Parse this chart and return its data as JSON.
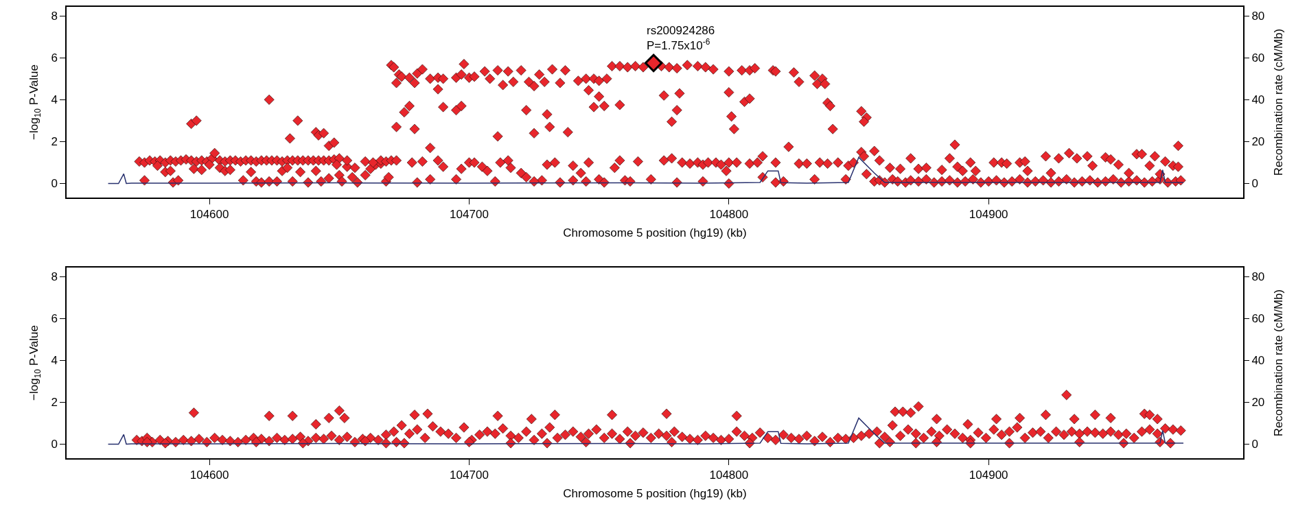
{
  "chart_data": [
    {
      "type": "scatter",
      "xlabel": "Chromosome 5 position (hg19) (kb)",
      "ylabel": "−log$_{10}$ P-Value",
      "y2label": "Recombination rate (cM/Mb)",
      "xlim": [
        104545,
        104998
      ],
      "xticks": [
        104600,
        104700,
        104800,
        104900
      ],
      "ylim": [
        -0.67,
        8.43
      ],
      "yticks": [
        0,
        2,
        4,
        6,
        8
      ],
      "y2lim": [
        -6.7,
        84.3
      ],
      "y2ticks": [
        0,
        20,
        40,
        60,
        80
      ],
      "marker": "diamond",
      "grid": false,
      "annotations": [
        {
          "text": "rs200924286\nP=1.75x10$^{-6}$",
          "x": 104771,
          "y": 5.75
        }
      ],
      "series": [
        {
          "type": "line",
          "marker": "none",
          "axis": "y2",
          "color": "#27306e",
          "x": [
            104561,
            104565,
            104567,
            104568,
            104570,
            104600,
            104650,
            104700,
            104760,
            104790,
            104812,
            104815,
            104819,
            104820,
            104830,
            104846,
            104850,
            104856,
            104860,
            104900,
            104950,
            104966,
            104967,
            104968,
            104975
          ],
          "values": [
            0,
            0,
            4.6,
            0,
            0.2,
            0.2,
            0.3,
            0.2,
            0.3,
            0.2,
            0.5,
            6,
            6,
            0.4,
            0.2,
            0.5,
            12.5,
            5,
            0.5,
            0.5,
            0.5,
            0.5,
            6.5,
            0.5,
            0.5
          ]
        },
        {
          "type": "scatter",
          "color": "#e8262c",
          "x": [
            104573,
            104575,
            104577,
            104579,
            104581,
            104583,
            104585,
            104587,
            104589,
            104591,
            104593,
            104595,
            104597,
            104599,
            104601,
            104602,
            104604,
            104606,
            104608,
            104610,
            104612,
            104614,
            104616,
            104618,
            104620,
            104622,
            104624,
            104626,
            104628,
            104630,
            104632,
            104634,
            104636,
            104638,
            104640,
            104642,
            104644,
            104646,
            104648,
            104650,
            104575,
            104580,
            104583,
            104585,
            104586,
            104588,
            104594,
            104597,
            104600,
            104604,
            104606,
            104608,
            104613,
            104616,
            104618,
            104620,
            104623,
            104626,
            104628,
            104630,
            104632,
            104635,
            104638,
            104641,
            104643,
            104646,
            104649,
            104650,
            104651,
            104653,
            104655,
            104657,
            104660,
            104662,
            104664,
            104666,
            104668,
            104669,
            104593,
            104595,
            104623,
            104631,
            104634,
            104641,
            104642,
            104644,
            104646,
            104648,
            104653,
            104656,
            104660,
            104663,
            104666,
            104668,
            104670,
            104672,
            104678,
            104682,
            104685,
            104688,
            104690,
            104697,
            104700,
            104702,
            104705,
            104707,
            104712,
            104715,
            104716,
            104720,
            104722,
            104728,
            104730,
            104733,
            104735,
            104740,
            104743,
            104746,
            104750,
            104752,
            104756,
            104758,
            104760,
            104762,
            104765,
            104770,
            104775,
            104778,
            104782,
            104785,
            104788,
            104790,
            104792,
            104795,
            104797,
            104799,
            104800,
            104803,
            104808,
            104811,
            104813,
            104818,
            104823,
            104827,
            104830,
            104835,
            104838,
            104842,
            104846,
            104848,
            104851,
            104852,
            104853,
            104680,
            104685,
            104695,
            104710,
            104725,
            104740,
            104745,
            104780,
            104790,
            104800,
            104813,
            104818,
            104821,
            104833,
            104845,
            104670,
            104671,
            104672,
            104673,
            104674,
            104677,
            104679,
            104680,
            104682,
            104685,
            104688,
            104690,
            104695,
            104697,
            104698,
            104700,
            104702,
            104706,
            104708,
            104711,
            104713,
            104715,
            104717,
            104720,
            104723,
            104725,
            104727,
            104729,
            104732,
            104735,
            104737,
            104742,
            104745,
            104746,
            104748,
            104750,
            104753,
            104755,
            104758,
            104761,
            104764,
            104767,
            104774,
            104777,
            104780,
            104784,
            104788,
            104791,
            104794,
            104800,
            104805,
            104808,
            104810,
            104817,
            104818,
            104825,
            104827,
            104833,
            104834,
            104836,
            104837,
            104672,
            104675,
            104677,
            104679,
            104688,
            104690,
            104695,
            104697,
            104711,
            104722,
            104725,
            104730,
            104731,
            104738,
            104748,
            104750,
            104752,
            104758,
            104778,
            104780,
            104781,
            104775,
            104800,
            104801,
            104802,
            104806,
            104808,
            104838,
            104839,
            104840,
            104851,
            104853,
            104852,
            104856,
            104858,
            104860,
            104863,
            104865,
            104868,
            104870,
            104873,
            104876,
            104879,
            104882,
            104885,
            104888,
            104891,
            104894,
            104897,
            104900,
            104903,
            104906,
            104909,
            104912,
            104915,
            104918,
            104921,
            104924,
            104927,
            104930,
            104933,
            104936,
            104939,
            104942,
            104945,
            104948,
            104951,
            104954,
            104957,
            104960,
            104963,
            104966,
            104969,
            104972,
            104974,
            104856,
            104858,
            104862,
            104866,
            104870,
            104873,
            104876,
            104882,
            104885,
            104887,
            104888,
            104890,
            104893,
            104895,
            104902,
            104905,
            104907,
            104912,
            104914,
            104915,
            104922,
            104924,
            104927,
            104931,
            104934,
            104938,
            104940,
            104945,
            104947,
            104950,
            104954,
            104957,
            104959,
            104962,
            104964,
            104966,
            104968,
            104971,
            104973,
            104973
          ],
          "values": [
            1.05,
            1.0,
            1.1,
            1.05,
            1.1,
            1.0,
            1.1,
            1.05,
            1.1,
            1.15,
            1.1,
            1.05,
            1.1,
            1.05,
            1.2,
            1.45,
            1.1,
            1.05,
            1.1,
            1.1,
            1.05,
            1.1,
            1.1,
            1.05,
            1.1,
            1.1,
            1.1,
            1.1,
            1.05,
            1.1,
            1.1,
            1.1,
            1.1,
            1.1,
            1.1,
            1.1,
            1.1,
            1.1,
            1.15,
            1.2,
            0.15,
            0.85,
            0.55,
            0.6,
            0.05,
            0.15,
            0.7,
            0.65,
            0.9,
            0.75,
            0.6,
            0.65,
            0.15,
            0.55,
            0.1,
            0.05,
            0.1,
            0.1,
            0.6,
            0.75,
            0.1,
            0.55,
            0.05,
            0.6,
            0.1,
            0.25,
            0.9,
            0.4,
            0.1,
            0.8,
            0.3,
            0.05,
            0.4,
            0.7,
            0.9,
            0.95,
            0.1,
            0.3,
            2.85,
            3.0,
            4.0,
            2.15,
            3.0,
            2.45,
            2.3,
            2.4,
            1.8,
            1.95,
            1.1,
            0.75,
            1.05,
            1.0,
            1.1,
            1.05,
            1.1,
            1.1,
            1.0,
            1.05,
            1.7,
            1.1,
            0.8,
            0.7,
            1.0,
            1.0,
            0.8,
            0.6,
            1.0,
            1.1,
            0.75,
            0.5,
            0.3,
            0.15,
            0.9,
            1.0,
            0.05,
            0.85,
            0.5,
            1.0,
            0.2,
            0.05,
            0.75,
            1.1,
            0.15,
            0.1,
            1.05,
            0.2,
            1.1,
            1.2,
            1.0,
            0.95,
            1.0,
            0.9,
            1.0,
            1.0,
            0.9,
            0.6,
            1.0,
            1.0,
            0.95,
            1.0,
            1.3,
            1.0,
            1.75,
            0.95,
            0.95,
            1.0,
            0.95,
            1.0,
            0.85,
            1.0,
            1.5,
            1.3,
            0.45,
            0.05,
            0.2,
            0.2,
            0.1,
            0.1,
            0.15,
            0.1,
            0.05,
            0.1,
            0.0,
            0.3,
            0.05,
            0.1,
            0.2,
            0.2,
            5.65,
            5.55,
            4.8,
            5.2,
            5.1,
            5.05,
            4.8,
            5.25,
            5.45,
            5.0,
            5.05,
            5.0,
            5.05,
            5.2,
            5.7,
            5.05,
            5.1,
            5.35,
            5.0,
            5.4,
            4.7,
            5.35,
            4.85,
            5.4,
            4.85,
            4.65,
            5.2,
            4.85,
            5.45,
            4.8,
            5.4,
            4.9,
            5.0,
            4.45,
            5.0,
            4.9,
            5.0,
            5.6,
            5.6,
            5.55,
            5.6,
            5.55,
            5.6,
            5.55,
            5.5,
            5.65,
            5.6,
            5.55,
            5.45,
            5.35,
            5.4,
            5.4,
            5.5,
            5.4,
            5.35,
            5.3,
            4.85,
            5.15,
            4.75,
            5.0,
            4.75,
            2.7,
            3.4,
            3.7,
            2.6,
            4.5,
            3.65,
            3.5,
            3.7,
            2.25,
            3.5,
            2.4,
            3.3,
            2.7,
            2.45,
            3.65,
            4.15,
            3.7,
            3.75,
            2.95,
            3.5,
            4.3,
            4.2,
            4.35,
            3.2,
            2.6,
            3.9,
            4.05,
            3.85,
            3.7,
            2.6,
            3.45,
            3.15,
            2.95,
            0.1,
            0.15,
            0.05,
            0.2,
            0.1,
            0.05,
            0.15,
            0.1,
            0.2,
            0.05,
            0.1,
            0.15,
            0.05,
            0.1,
            0.2,
            0.05,
            0.1,
            0.15,
            0.05,
            0.1,
            0.2,
            0.05,
            0.1,
            0.15,
            0.05,
            0.1,
            0.2,
            0.05,
            0.1,
            0.15,
            0.05,
            0.1,
            0.2,
            0.05,
            0.1,
            0.15,
            0.05,
            0.1,
            0.2,
            0.05,
            0.1,
            0.15,
            1.55,
            1.1,
            0.75,
            0.7,
            1.2,
            0.7,
            0.75,
            0.65,
            1.2,
            1.85,
            0.8,
            0.6,
            1.0,
            0.6,
            1.0,
            1.0,
            0.95,
            1.0,
            1.05,
            0.6,
            1.3,
            0.5,
            1.2,
            1.45,
            1.2,
            1.3,
            0.85,
            1.25,
            1.15,
            0.9,
            0.5,
            1.4,
            1.4,
            0.85,
            1.3,
            0.45,
            1.05,
            0.85,
            1.8,
            0.8
          ]
        },
        {
          "color": "#e8262c",
          "x": [
            104771
          ],
          "values": [
            5.75
          ]
        }
      ]
    },
    {
      "type": "scatter",
      "xlabel": "Chromosome 5 position (hg19) (kb)",
      "ylabel": "−log$_{10}$ P-Value",
      "y2label": "Recombination rate (cM/Mb)",
      "xlim": [
        104545,
        104998
      ],
      "xticks": [
        104600,
        104700,
        104800,
        104900
      ],
      "ylim": [
        -0.67,
        8.43
      ],
      "yticks": [
        0,
        2,
        4,
        6,
        8
      ],
      "y2lim": [
        -6.7,
        84.3
      ],
      "y2ticks": [
        0,
        20,
        40,
        60,
        80
      ],
      "marker": "diamond",
      "grid": false,
      "series": [
        {
          "type": "line",
          "marker": "none",
          "axis": "y2",
          "color": "#27306e",
          "x": [
            104561,
            104565,
            104567,
            104568,
            104570,
            104600,
            104650,
            104700,
            104760,
            104790,
            104812,
            104815,
            104819,
            104820,
            104830,
            104846,
            104850,
            104856,
            104860,
            104900,
            104950,
            104966,
            104967,
            104968,
            104975
          ],
          "values": [
            0,
            0,
            4.6,
            0,
            0.2,
            0.2,
            0.3,
            0.2,
            0.3,
            0.2,
            0.5,
            6,
            6,
            0.4,
            0.2,
            0.5,
            12.5,
            5,
            0.5,
            0.5,
            0.5,
            0.5,
            6.5,
            0.5,
            0.5
          ]
        },
        {
          "color": "#e8262c",
          "x": [
            104572,
            104574,
            104576,
            104578,
            104581,
            104584,
            104587,
            104590,
            104593,
            104596,
            104599,
            104602,
            104605,
            104608,
            104611,
            104614,
            104617,
            104620,
            104623,
            104626,
            104629,
            104632,
            104635,
            104638,
            104641,
            104644,
            104647,
            104650,
            104653,
            104656,
            104659,
            104662,
            104665,
            104668,
            104671,
            104674,
            104677,
            104680,
            104683,
            104686,
            104689,
            104692,
            104695,
            104698,
            104701,
            104704,
            104707,
            104710,
            104713,
            104716,
            104719,
            104722,
            104725,
            104728,
            104731,
            104734,
            104737,
            104740,
            104743,
            104746,
            104749,
            104752,
            104755,
            104758,
            104761,
            104764,
            104767,
            104770,
            104773,
            104776,
            104779,
            104782,
            104785,
            104788,
            104791,
            104794,
            104797,
            104800,
            104803,
            104806,
            104809,
            104812,
            104815,
            104818,
            104821,
            104824,
            104827,
            104830,
            104833,
            104836,
            104839,
            104842,
            104845,
            104848,
            104851,
            104854,
            104857,
            104860,
            104863,
            104866,
            104869,
            104872,
            104875,
            104878,
            104881,
            104884,
            104887,
            104890,
            104893,
            104896,
            104899,
            104902,
            104905,
            104908,
            104911,
            104914,
            104917,
            104920,
            104923,
            104926,
            104929,
            104932,
            104935,
            104938,
            104941,
            104944,
            104947,
            104950,
            104953,
            104956,
            104959,
            104962,
            104965,
            104968,
            104971,
            104974,
            104576,
            104583,
            104618,
            104636,
            104660,
            104668,
            104672,
            104675,
            104700,
            104716,
            104730,
            104745,
            104762,
            104778,
            104808,
            104858,
            104862,
            104872,
            104880,
            104893,
            104908,
            104935,
            104952,
            104966,
            104970,
            104594,
            104623,
            104632,
            104641,
            104646,
            104650,
            104652,
            104679,
            104684,
            104711,
            104724,
            104733,
            104755,
            104776,
            104803,
            104864,
            104867,
            104870,
            104873,
            104880,
            104892,
            104903,
            104912,
            104922,
            104930,
            104933,
            104941,
            104947,
            104960,
            104962,
            104965
          ],
          "values": [
            0.2,
            0.15,
            0.3,
            0.1,
            0.2,
            0.15,
            0.1,
            0.2,
            0.15,
            0.25,
            0.1,
            0.3,
            0.2,
            0.15,
            0.1,
            0.2,
            0.3,
            0.25,
            0.15,
            0.3,
            0.2,
            0.25,
            0.35,
            0.15,
            0.3,
            0.25,
            0.4,
            0.2,
            0.35,
            0.1,
            0.25,
            0.3,
            0.2,
            0.45,
            0.6,
            0.9,
            0.5,
            0.7,
            0.3,
            0.85,
            0.6,
            0.5,
            0.3,
            0.8,
            0.2,
            0.45,
            0.6,
            0.5,
            0.75,
            0.4,
            0.3,
            0.6,
            0.2,
            0.5,
            0.8,
            0.3,
            0.45,
            0.6,
            0.35,
            0.5,
            0.7,
            0.3,
            0.5,
            0.25,
            0.6,
            0.4,
            0.55,
            0.3,
            0.5,
            0.4,
            0.6,
            0.35,
            0.25,
            0.2,
            0.4,
            0.3,
            0.2,
            0.25,
            0.6,
            0.4,
            0.3,
            0.55,
            0.3,
            0.2,
            0.45,
            0.3,
            0.25,
            0.4,
            0.15,
            0.35,
            0.1,
            0.3,
            0.25,
            0.3,
            0.4,
            0.5,
            0.6,
            0.35,
            0.9,
            0.4,
            0.7,
            0.5,
            0.3,
            0.6,
            0.4,
            0.7,
            0.5,
            0.3,
            0.2,
            0.55,
            0.3,
            0.7,
            0.45,
            0.6,
            0.8,
            0.3,
            0.55,
            0.6,
            0.3,
            0.6,
            0.45,
            0.6,
            0.5,
            0.6,
            0.55,
            0.5,
            0.6,
            0.45,
            0.5,
            0.3,
            0.6,
            0.7,
            0.5,
            0.75,
            0.7,
            0.65,
            0.1,
            0.05,
            0.1,
            0.05,
            0.15,
            0.05,
            0.1,
            0.05,
            0.1,
            0.05,
            0.05,
            0.1,
            0.05,
            0.1,
            0.05,
            0.05,
            0.1,
            0.05,
            0.1,
            0.05,
            0.05,
            0.1,
            0.05,
            0.1,
            0.05,
            1.5,
            1.35,
            1.35,
            0.95,
            1.25,
            1.6,
            1.25,
            1.4,
            1.45,
            1.35,
            1.2,
            1.4,
            1.4,
            1.45,
            1.35,
            1.55,
            1.55,
            1.5,
            1.8,
            1.2,
            0.95,
            1.2,
            1.25,
            1.4,
            2.35,
            1.2,
            1.4,
            1.25,
            1.45,
            1.4,
            1.2
          ]
        }
      ]
    }
  ]
}
